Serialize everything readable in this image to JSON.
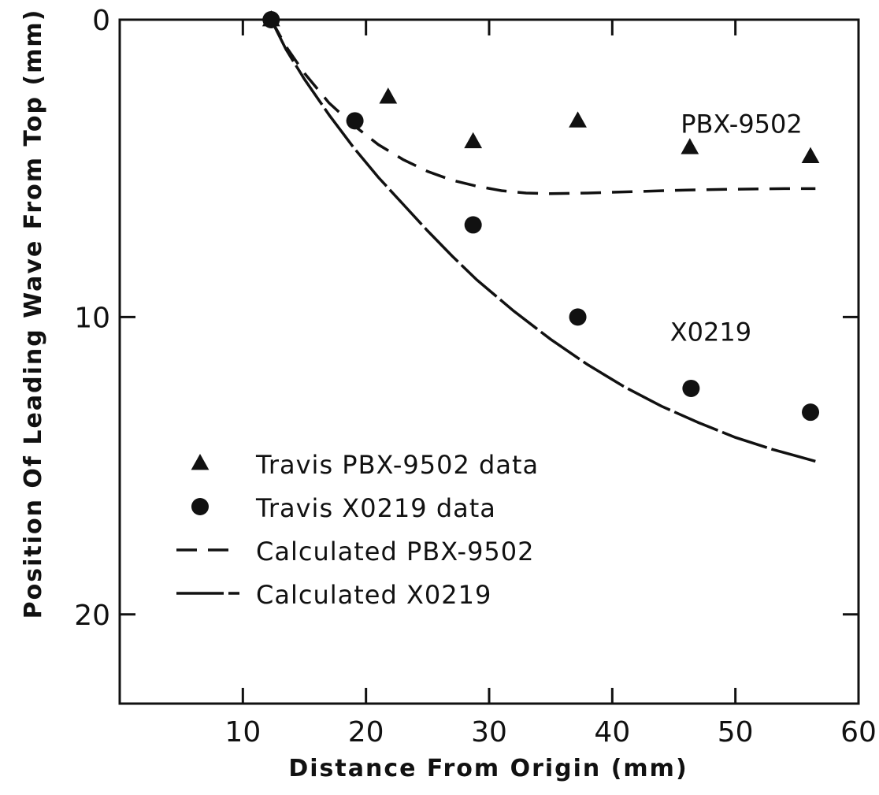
{
  "chart_data": {
    "type": "scatter",
    "xlabel": "Distance From Origin (mm)",
    "ylabel": "Position Of Leading Wave From Top (mm)",
    "xlim": [
      0,
      60
    ],
    "ylim": [
      0,
      23
    ],
    "y_inverted": true,
    "xticks": [
      10,
      20,
      30,
      40,
      50,
      60
    ],
    "yticks": [
      0,
      10,
      20
    ],
    "x_tick_labels": [
      "10",
      "20",
      "30",
      "40",
      "50",
      "60"
    ],
    "y_tick_labels": [
      "0",
      "10",
      "20"
    ],
    "grid": false,
    "legend_position": "bottom-left",
    "series": [
      {
        "name": "Travis PBX-9502 data",
        "kind": "points",
        "marker": "triangle",
        "x": [
          12.3,
          21.8,
          28.7,
          37.2,
          46.3,
          56.1
        ],
        "y": [
          0.0,
          2.6,
          4.1,
          3.4,
          4.3,
          4.6
        ]
      },
      {
        "name": "Travis X0219 data",
        "kind": "points",
        "marker": "circle",
        "x": [
          12.3,
          19.1,
          28.7,
          37.2,
          46.4,
          56.1
        ],
        "y": [
          0.0,
          3.4,
          6.9,
          10.0,
          12.4,
          13.2
        ]
      },
      {
        "name": "Calculated PBX-9502",
        "kind": "line",
        "dash": "dashed",
        "x": [
          12.3,
          13.5,
          15,
          17,
          19,
          21,
          23,
          25,
          27,
          29,
          31,
          33,
          35,
          38,
          42,
          46,
          50,
          54,
          56.5
        ],
        "y": [
          0.0,
          0.9,
          1.8,
          2.8,
          3.55,
          4.2,
          4.7,
          5.1,
          5.4,
          5.6,
          5.75,
          5.83,
          5.85,
          5.83,
          5.78,
          5.73,
          5.7,
          5.68,
          5.68
        ]
      },
      {
        "name": "Calculated X0219",
        "kind": "line",
        "dash": "long-dash",
        "x": [
          12.3,
          13.5,
          15,
          17,
          19,
          21,
          23,
          25,
          27,
          29,
          32,
          35,
          38,
          41,
          44,
          47,
          50,
          53,
          56.5
        ],
        "y": [
          0.0,
          1.0,
          2.0,
          3.2,
          4.3,
          5.3,
          6.2,
          7.1,
          7.95,
          8.75,
          9.8,
          10.75,
          11.6,
          12.35,
          13.0,
          13.55,
          14.05,
          14.45,
          14.85
        ]
      }
    ],
    "annotations": [
      {
        "text": "PBX-9502",
        "x": 50.5,
        "y": 3.8
      },
      {
        "text": "X0219",
        "x": 48,
        "y": 10.8
      }
    ],
    "legend": [
      {
        "text": "Travis PBX-9502 data",
        "marker": "triangle"
      },
      {
        "text": "Travis X0219 data",
        "marker": "circle"
      },
      {
        "text": "Calculated PBX-9502",
        "marker": "dashed"
      },
      {
        "text": "Calculated X0219",
        "marker": "long-dash"
      }
    ],
    "color": "#111111"
  }
}
